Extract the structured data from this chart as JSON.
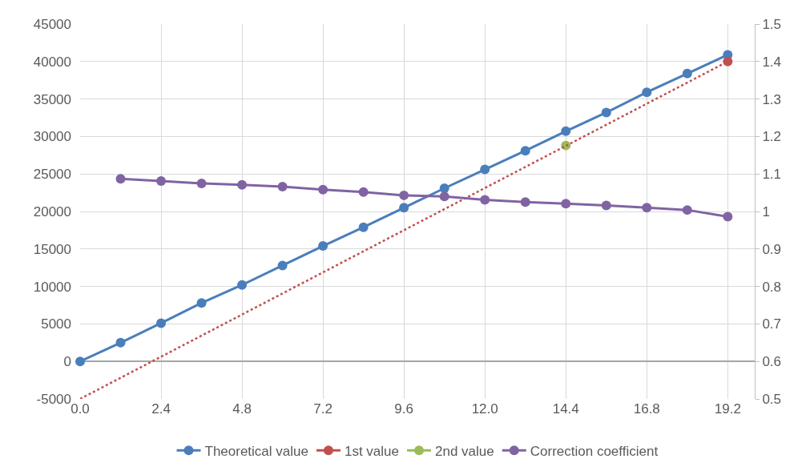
{
  "chart_data": {
    "type": "line",
    "xlim": [
      0,
      20
    ],
    "xticks": [
      {
        "value": 0,
        "label": "0.0"
      },
      2.4,
      4.8,
      7.2,
      9.6,
      {
        "value": 12,
        "label": "12.0"
      },
      14.4,
      16.8,
      19.2
    ],
    "ylim": [
      -5000,
      45000
    ],
    "yticks": [
      -5000,
      0,
      5000,
      10000,
      15000,
      20000,
      25000,
      30000,
      35000,
      40000,
      45000
    ],
    "y2lim": [
      0.5,
      1.5
    ],
    "y2ticks": [
      0.5,
      0.6,
      0.7,
      0.8,
      0.9,
      1,
      1.1,
      1.2,
      1.3,
      1.4,
      1.5
    ],
    "grid": true,
    "legend": "bottom",
    "marker": "circle",
    "line_style": "solid",
    "series": [
      {
        "name": "Theoretical value",
        "color": "#4a7ebb",
        "x": [
          0,
          1.2,
          2.4,
          3.6,
          4.8,
          6.0,
          7.2,
          8.4,
          9.6,
          10.8,
          12.0,
          13.2,
          14.4,
          15.6,
          16.8,
          18.0,
          19.2
        ],
        "values": [
          0,
          2500,
          5100,
          7800,
          10200,
          12800,
          15400,
          17900,
          20500,
          23100,
          25600,
          28100,
          30700,
          33200,
          35900,
          38400,
          40900
        ]
      },
      {
        "name": "1st value",
        "color": "#c0504d",
        "x": [
          19.2
        ],
        "values": [
          40000
        ]
      },
      {
        "name": "2nd value",
        "color": "#9bbb59",
        "x": [
          14.4
        ],
        "values": [
          28800
        ]
      },
      {
        "name": "Correction coefficient",
        "color": "#8064a2",
        "axis": "y2",
        "x": [
          1.2,
          2.4,
          3.6,
          4.8,
          6.0,
          7.2,
          8.4,
          9.6,
          10.8,
          12.0,
          13.2,
          14.4,
          15.6,
          16.8,
          18.0,
          19.2
        ],
        "values": [
          1.087,
          1.081,
          1.075,
          1.071,
          1.066,
          1.058,
          1.052,
          1.043,
          1.04,
          1.031,
          1.025,
          1.021,
          1.016,
          1.01,
          1.004,
          0.986
        ]
      },
      {
        "type": "line",
        "color": "#c0504d",
        "line_style": "dotted",
        "marker": "none",
        "x": [
          0,
          19.2
        ],
        "values": [
          -5000,
          40000
        ]
      }
    ]
  }
}
